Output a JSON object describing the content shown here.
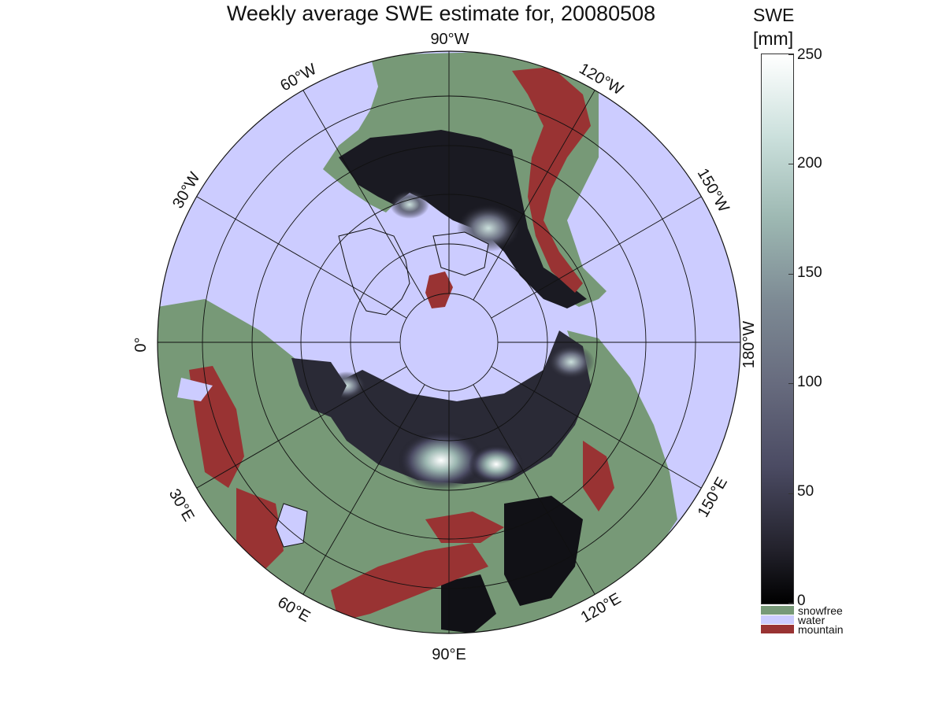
{
  "title": "Weekly average SWE estimate for, 20080508",
  "map": {
    "projection": "north-polar-stereographic",
    "longitude_labels": [
      {
        "id": "0",
        "text": "0°"
      },
      {
        "id": "30W",
        "text": "30°W"
      },
      {
        "id": "60W",
        "text": "60°W"
      },
      {
        "id": "90W",
        "text": "90°W"
      },
      {
        "id": "120W",
        "text": "120°W"
      },
      {
        "id": "150W",
        "text": "150°W"
      },
      {
        "id": "180W",
        "text": "180°W"
      },
      {
        "id": "150E",
        "text": "150°E"
      },
      {
        "id": "120E",
        "text": "120°E"
      },
      {
        "id": "90E",
        "text": "90°E"
      },
      {
        "id": "60E",
        "text": "60°E"
      },
      {
        "id": "30E",
        "text": "30°E"
      }
    ],
    "colors": {
      "water": "#ccccff",
      "snowfree": "#779977",
      "mountain": "#993333",
      "swe_low": "#101014",
      "swe_high": "#ffffff"
    }
  },
  "colorbar": {
    "title_line1": "SWE",
    "title_line2": "[mm]",
    "min": 0,
    "max": 250,
    "ticks": [
      "0",
      "50",
      "100",
      "150",
      "200",
      "250"
    ]
  },
  "legend": {
    "items": [
      {
        "label": "snowfree",
        "color": "#779977"
      },
      {
        "label": "water",
        "color": "#ccccff"
      },
      {
        "label": "mountain",
        "color": "#993333"
      }
    ]
  }
}
